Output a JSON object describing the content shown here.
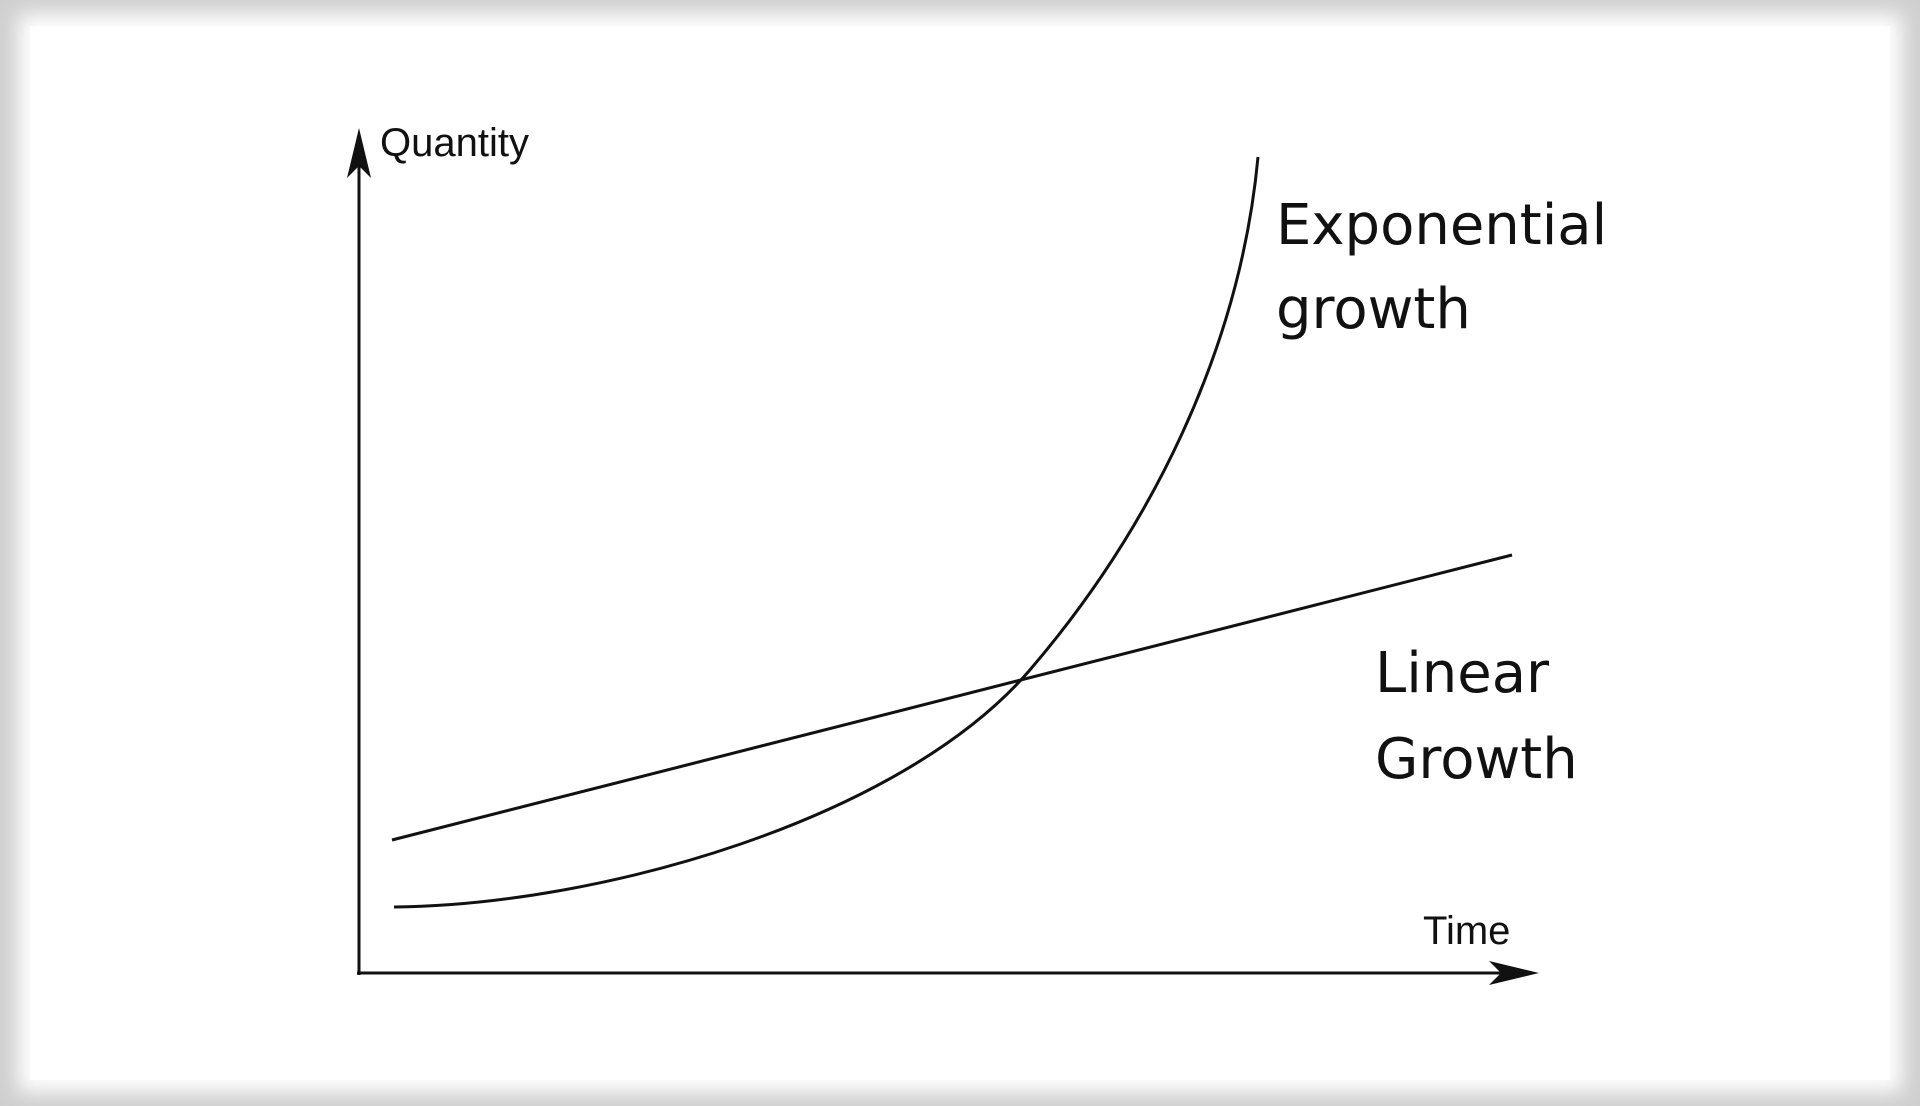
{
  "diagram": {
    "y_axis_label": "Quantity",
    "x_axis_label": "Time",
    "curves": [
      {
        "label_lines": [
          "Exponential",
          "growth"
        ]
      },
      {
        "label_lines": [
          "Linear",
          "Growth"
        ]
      }
    ]
  }
}
